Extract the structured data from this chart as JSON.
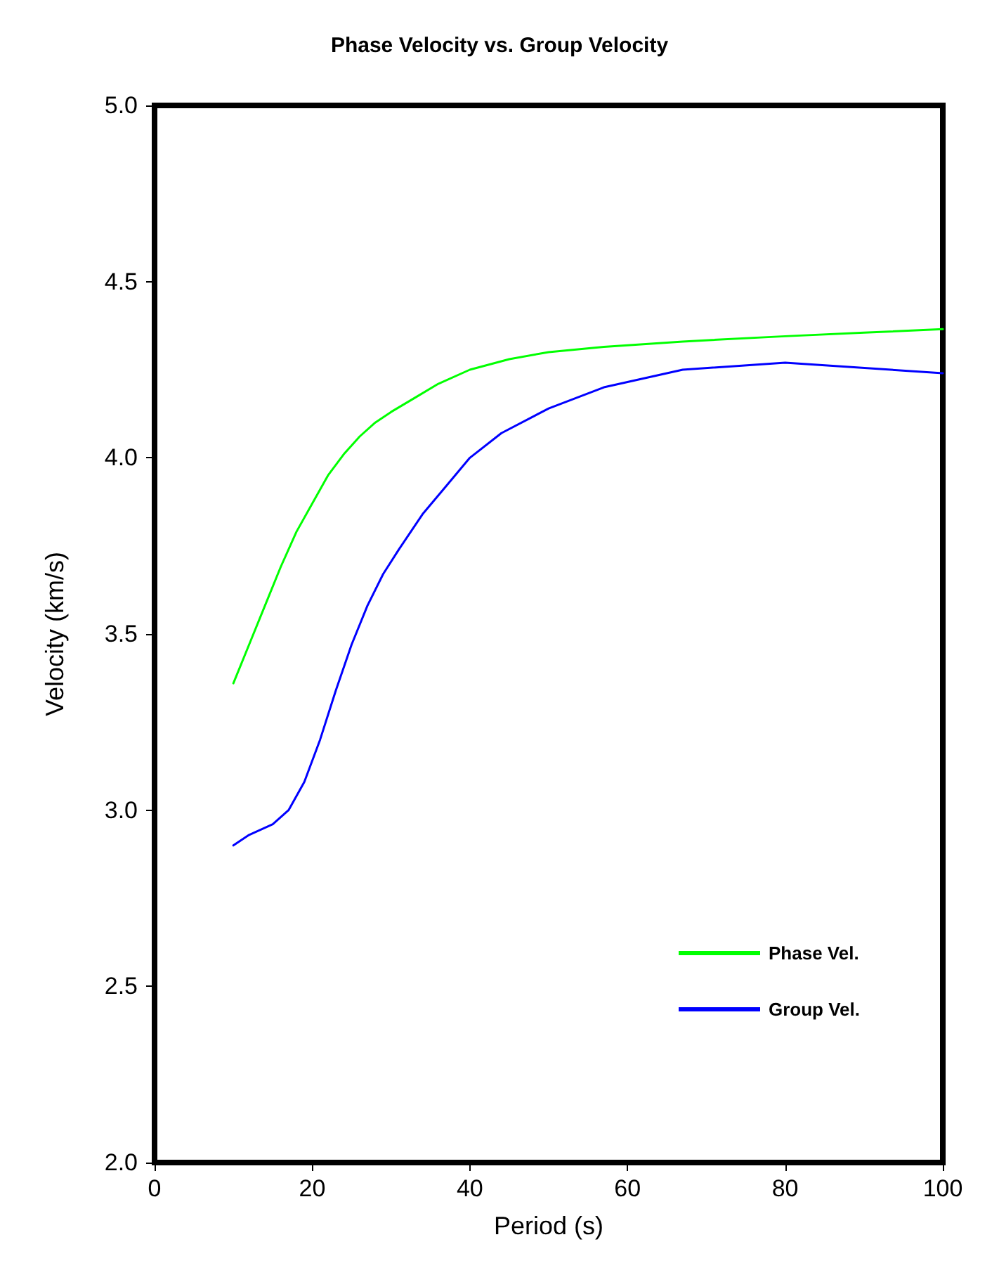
{
  "chart_data": {
    "type": "line",
    "title": "Phase Velocity vs. Group Velocity",
    "xlabel": "Period (s)",
    "ylabel": "Velocity (km/s)",
    "xlim": [
      0,
      100
    ],
    "xticks": [
      0,
      20,
      40,
      60,
      80,
      100
    ],
    "ylim": [
      2.0,
      5.0
    ],
    "yticks": [
      {
        "value": 2.0,
        "label": "2.0"
      },
      {
        "value": 2.5,
        "label": "2.5"
      },
      {
        "value": 3.0,
        "label": "3.0"
      },
      {
        "value": 3.5,
        "label": "3.5"
      },
      {
        "value": 4.0,
        "label": "4.0"
      },
      {
        "value": 4.5,
        "label": "4.5"
      },
      {
        "value": 5.0,
        "label": "5.0"
      }
    ],
    "grid": false,
    "legend": "bottom right",
    "marker": "none",
    "line_style": "solid",
    "series": [
      {
        "name": "Phase Vel.",
        "color": "#00ff00",
        "x": [
          10,
          12,
          14,
          16,
          18,
          20,
          22,
          24,
          26,
          28,
          30,
          33,
          36,
          40,
          45,
          50,
          57,
          67,
          80,
          90,
          100
        ],
        "values": [
          3.36,
          3.47,
          3.58,
          3.69,
          3.79,
          3.87,
          3.95,
          4.01,
          4.06,
          4.1,
          4.13,
          4.17,
          4.21,
          4.25,
          4.28,
          4.3,
          4.315,
          4.33,
          4.345,
          4.355,
          4.365
        ]
      },
      {
        "name": "Group Vel.",
        "color": "#0000ff",
        "x": [
          10,
          12,
          15,
          17,
          19,
          21,
          23,
          25,
          27,
          29,
          31,
          34,
          37,
          40,
          44,
          50,
          57,
          67,
          80,
          100
        ],
        "values": [
          2.9,
          2.93,
          2.96,
          3.0,
          3.08,
          3.2,
          3.34,
          3.47,
          3.58,
          3.67,
          3.74,
          3.84,
          3.92,
          4.0,
          4.07,
          4.14,
          4.2,
          4.25,
          4.27,
          4.24
        ]
      }
    ]
  }
}
